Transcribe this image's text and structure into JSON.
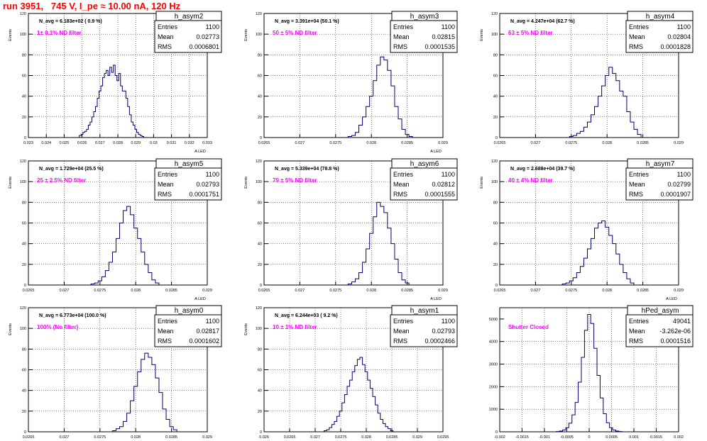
{
  "run_label": "run 3951,   745 V, I_pe ≈ 10.00 nA, 120 Hz",
  "colors": {
    "hist_line": "#00006e",
    "annotation": "#ff00ff",
    "nbox_text": "#000000",
    "grid": "#000000",
    "title": "#ff0000"
  },
  "chart_data": [
    {
      "type": "bar",
      "name": "h_asym2",
      "navg": "N_avg = 6.183e+02 ( 0.9 %)",
      "filter": "1± 0.1% ND filter",
      "stats": {
        "entries": "1100",
        "mean": "0.02773",
        "rms": "0.0006801"
      },
      "ylabel": "Events",
      "xlabel": "A_LED",
      "ylim": [
        0,
        120
      ],
      "yticks": [
        "0",
        "20",
        "40",
        "60",
        "80",
        "100",
        "120"
      ],
      "xlim": [
        0.023,
        0.033
      ],
      "xticks": [
        "0.023",
        "0.024",
        "0.025",
        "0.026",
        "0.027",
        "0.028",
        "0.029",
        "0.03",
        "0.031",
        "0.032",
        "0.033"
      ],
      "bin_centers": [
        0.0259,
        0.026,
        0.0261,
        0.0262,
        0.0263,
        0.0264,
        0.0265,
        0.0266,
        0.0267,
        0.0268,
        0.0269,
        0.027,
        0.0271,
        0.0272,
        0.0273,
        0.0274,
        0.0275,
        0.0276,
        0.0277,
        0.0278,
        0.0279,
        0.028,
        0.0281,
        0.0282,
        0.0283,
        0.0284,
        0.0285,
        0.0286,
        0.0287,
        0.0288,
        0.0289,
        0.029,
        0.0291,
        0.0292,
        0.0293,
        0.0294
      ],
      "bin_values": [
        2,
        3,
        5,
        6,
        8,
        12,
        15,
        20,
        25,
        30,
        38,
        45,
        50,
        58,
        62,
        65,
        60,
        68,
        63,
        70,
        60,
        55,
        62,
        50,
        45,
        45,
        38,
        30,
        22,
        15,
        12,
        8,
        5,
        3,
        2,
        1
      ]
    },
    {
      "type": "bar",
      "name": "h_asym3",
      "navg": "N_avg = 3.391e+04 (50.1 %)",
      "filter": "50 ± 5% ND filter",
      "stats": {
        "entries": "1100",
        "mean": "0.02815",
        "rms": "0.0001535"
      },
      "ylabel": "Events",
      "xlabel": "A_LED",
      "ylim": [
        0,
        120
      ],
      "yticks": [
        "0",
        "20",
        "40",
        "60",
        "80",
        "100",
        "120"
      ],
      "xlim": [
        0.0265,
        0.029
      ],
      "xticks": [
        "0.0265",
        "0.027",
        "0.0275",
        "0.028",
        "0.0285",
        "0.029"
      ],
      "bin_centers": [
        0.0277,
        0.02775,
        0.0278,
        0.02785,
        0.0279,
        0.02795,
        0.028,
        0.02805,
        0.0281,
        0.02815,
        0.0282,
        0.02825,
        0.0283,
        0.02835,
        0.0284,
        0.02845,
        0.0285,
        0.02855
      ],
      "bin_values": [
        1,
        2,
        5,
        12,
        20,
        30,
        40,
        55,
        70,
        78,
        75,
        65,
        50,
        30,
        18,
        8,
        3,
        1
      ]
    },
    {
      "type": "bar",
      "name": "h_asym4",
      "navg": "N_avg = 4.247e+04 (62.7 %)",
      "filter": "63 ± 5% ND filter",
      "stats": {
        "entries": "1100",
        "mean": "0.02804",
        "rms": "0.0001828"
      },
      "ylabel": "Events",
      "xlabel": "",
      "ylim": [
        0,
        120
      ],
      "yticks": [
        "0",
        "20",
        "40",
        "60",
        "80",
        "100",
        "120"
      ],
      "xlim": [
        0.0265,
        0.029
      ],
      "xticks": [
        "0.0265",
        "0.027",
        "0.0275",
        "0.028",
        "0.0285",
        "0.029"
      ],
      "bin_centers": [
        0.0275,
        0.02755,
        0.0276,
        0.02765,
        0.0277,
        0.02775,
        0.0278,
        0.02785,
        0.0279,
        0.02795,
        0.028,
        0.02805,
        0.0281,
        0.02815,
        0.0282,
        0.02825,
        0.0283,
        0.02835,
        0.0284,
        0.02845
      ],
      "bin_values": [
        1,
        2,
        4,
        6,
        10,
        15,
        22,
        30,
        40,
        50,
        60,
        68,
        62,
        55,
        45,
        40,
        25,
        15,
        8,
        3
      ]
    },
    {
      "type": "bar",
      "name": "h_asym5",
      "navg": "N_avg = 1.729e+04 (25.5 %)",
      "filter": "25 ± 2.5% ND filter",
      "stats": {
        "entries": "1100",
        "mean": "0.02793",
        "rms": "0.0001751"
      },
      "ylabel": "Events",
      "xlabel": "A_LED",
      "ylim": [
        0,
        120
      ],
      "yticks": [
        "0",
        "20",
        "40",
        "60",
        "80",
        "100",
        "120"
      ],
      "xlim": [
        0.0265,
        0.029
      ],
      "xticks": [
        "0.0265",
        "0.027",
        "0.0275",
        "0.028",
        "0.0285",
        "0.029"
      ],
      "bin_centers": [
        0.0274,
        0.02745,
        0.0275,
        0.02755,
        0.0276,
        0.02765,
        0.0277,
        0.02775,
        0.0278,
        0.02785,
        0.0279,
        0.02795,
        0.028,
        0.02805,
        0.0281,
        0.02815,
        0.0282,
        0.02825,
        0.0283
      ],
      "bin_values": [
        1,
        2,
        4,
        8,
        14,
        22,
        32,
        45,
        60,
        72,
        76,
        68,
        55,
        45,
        32,
        20,
        12,
        5,
        2
      ]
    },
    {
      "type": "bar",
      "name": "h_asym6",
      "navg": "N_avg = 5.339e+04 (78.8 %)",
      "filter": "79 ± 5% ND filter",
      "stats": {
        "entries": "1100",
        "mean": "0.02812",
        "rms": "0.0001555"
      },
      "ylabel": "Events",
      "xlabel": "A_LED",
      "ylim": [
        0,
        120
      ],
      "yticks": [
        "0",
        "20",
        "40",
        "60",
        "80",
        "100",
        "120"
      ],
      "xlim": [
        0.0265,
        0.029
      ],
      "xticks": [
        "0.0265",
        "0.027",
        "0.0275",
        "0.028",
        "0.0285",
        "0.029"
      ],
      "bin_centers": [
        0.0277,
        0.02775,
        0.0278,
        0.02785,
        0.0279,
        0.02795,
        0.028,
        0.02805,
        0.0281,
        0.02815,
        0.0282,
        0.02825,
        0.0283,
        0.02835,
        0.0284,
        0.02845,
        0.0285
      ],
      "bin_values": [
        1,
        3,
        6,
        12,
        22,
        35,
        50,
        66,
        80,
        76,
        70,
        55,
        40,
        25,
        12,
        5,
        2
      ]
    },
    {
      "type": "bar",
      "name": "h_asym7",
      "navg": "N_avg = 2.688e+04 (39.7 %)",
      "filter": "40 ± 4% ND filter",
      "stats": {
        "entries": "1100",
        "mean": "0.02799",
        "rms": "0.0001907"
      },
      "ylabel": "Events",
      "xlabel": "A_LED",
      "ylim": [
        0,
        120
      ],
      "yticks": [
        "0",
        "20",
        "40",
        "60",
        "80",
        "100",
        "120"
      ],
      "xlim": [
        0.0265,
        0.029
      ],
      "xticks": [
        "0.0265",
        "0.027",
        "0.0275",
        "0.028",
        "0.0285",
        "0.029"
      ],
      "bin_centers": [
        0.0274,
        0.02745,
        0.0275,
        0.02755,
        0.0276,
        0.02765,
        0.0277,
        0.02775,
        0.0278,
        0.02785,
        0.0279,
        0.02795,
        0.028,
        0.02805,
        0.0281,
        0.02815,
        0.0282,
        0.02825,
        0.0283,
        0.02835
      ],
      "bin_values": [
        1,
        2,
        4,
        7,
        12,
        18,
        26,
        35,
        45,
        55,
        60,
        62,
        56,
        48,
        40,
        30,
        20,
        12,
        6,
        2
      ]
    },
    {
      "type": "bar",
      "name": "h_asym0",
      "navg": "N_avg = 6.773e+04 (100.0 %)",
      "filter": "100% (No filter)",
      "stats": {
        "entries": "1100",
        "mean": "0.02817",
        "rms": "0.0001602"
      },
      "ylabel": "Events",
      "xlabel": "A_LED",
      "ylim": [
        0,
        120
      ],
      "yticks": [
        "0",
        "20",
        "40",
        "60",
        "80",
        "100",
        "120"
      ],
      "xlim": [
        0.0265,
        0.029
      ],
      "xticks": [
        "0.0265",
        "0.027",
        "0.0275",
        "0.028",
        "0.0285",
        "0.029"
      ],
      "bin_centers": [
        0.0277,
        0.02775,
        0.0278,
        0.02785,
        0.0279,
        0.02795,
        0.028,
        0.02805,
        0.0281,
        0.02815,
        0.0282,
        0.02825,
        0.0283,
        0.02835,
        0.0284,
        0.02845,
        0.0285,
        0.02855
      ],
      "bin_values": [
        1,
        3,
        5,
        10,
        18,
        30,
        44,
        58,
        70,
        76,
        72,
        65,
        52,
        38,
        22,
        12,
        5,
        2
      ]
    },
    {
      "type": "bar",
      "name": "h_asym1",
      "navg": "N_avg = 6.244e+03 ( 9.2 %)",
      "filter": "10 ± 1% ND filter",
      "stats": {
        "entries": "1100",
        "mean": "0.02793",
        "rms": "0.0002466"
      },
      "ylabel": "Events",
      "xlabel": "A_LED",
      "ylim": [
        0,
        120
      ],
      "yticks": [
        "0",
        "20",
        "40",
        "60",
        "80",
        "100",
        "120"
      ],
      "xlim": [
        0.026,
        0.0295
      ],
      "xticks": [
        "0.026",
        "0.0265",
        "0.027",
        "0.0275",
        "0.028",
        "0.0285",
        "0.029",
        "0.0295"
      ],
      "bin_centers": [
        0.0272,
        0.02725,
        0.0273,
        0.02735,
        0.0274,
        0.02745,
        0.0275,
        0.02755,
        0.0276,
        0.02765,
        0.0277,
        0.02775,
        0.0278,
        0.02785,
        0.0279,
        0.02795,
        0.028,
        0.02805,
        0.0281,
        0.02815,
        0.0282,
        0.02825,
        0.0283,
        0.02835,
        0.0284,
        0.02845,
        0.0285
      ],
      "bin_values": [
        1,
        2,
        4,
        7,
        10,
        15,
        20,
        28,
        36,
        44,
        50,
        58,
        64,
        70,
        72,
        65,
        58,
        50,
        42,
        34,
        26,
        18,
        12,
        8,
        5,
        3,
        1
      ]
    },
    {
      "type": "bar",
      "name": "hPed_asym",
      "navg": "",
      "filter": "Shutter Closed",
      "stats": {
        "entries": "49041",
        "mean": "-3.262e-06",
        "rms": "0.0001516"
      },
      "ylabel": "",
      "xlabel": "",
      "ylim": [
        0,
        5500
      ],
      "yticks": [
        "0",
        "1000",
        "2000",
        "3000",
        "4000",
        "5000"
      ],
      "xlim": [
        -0.002,
        0.002
      ],
      "xticks": [
        "-0.002",
        "-0.0015",
        "-0.001",
        "-0.0005",
        "0",
        "0.0005",
        "0.001",
        "0.0015",
        "0.002"
      ],
      "bin_centers": [
        -0.0007,
        -0.00063,
        -0.00056,
        -0.00049,
        -0.00042,
        -0.00035,
        -0.00028,
        -0.00021,
        -0.00014,
        -7e-05,
        0,
        7e-05,
        0.00014,
        0.00021,
        0.00028,
        0.00035,
        0.00042,
        0.00049,
        0.00056,
        0.00063,
        0.0007
      ],
      "bin_values": [
        10,
        30,
        80,
        180,
        380,
        750,
        1300,
        2200,
        3300,
        4500,
        5200,
        4800,
        3700,
        2500,
        1500,
        800,
        400,
        180,
        80,
        30,
        10
      ]
    }
  ]
}
